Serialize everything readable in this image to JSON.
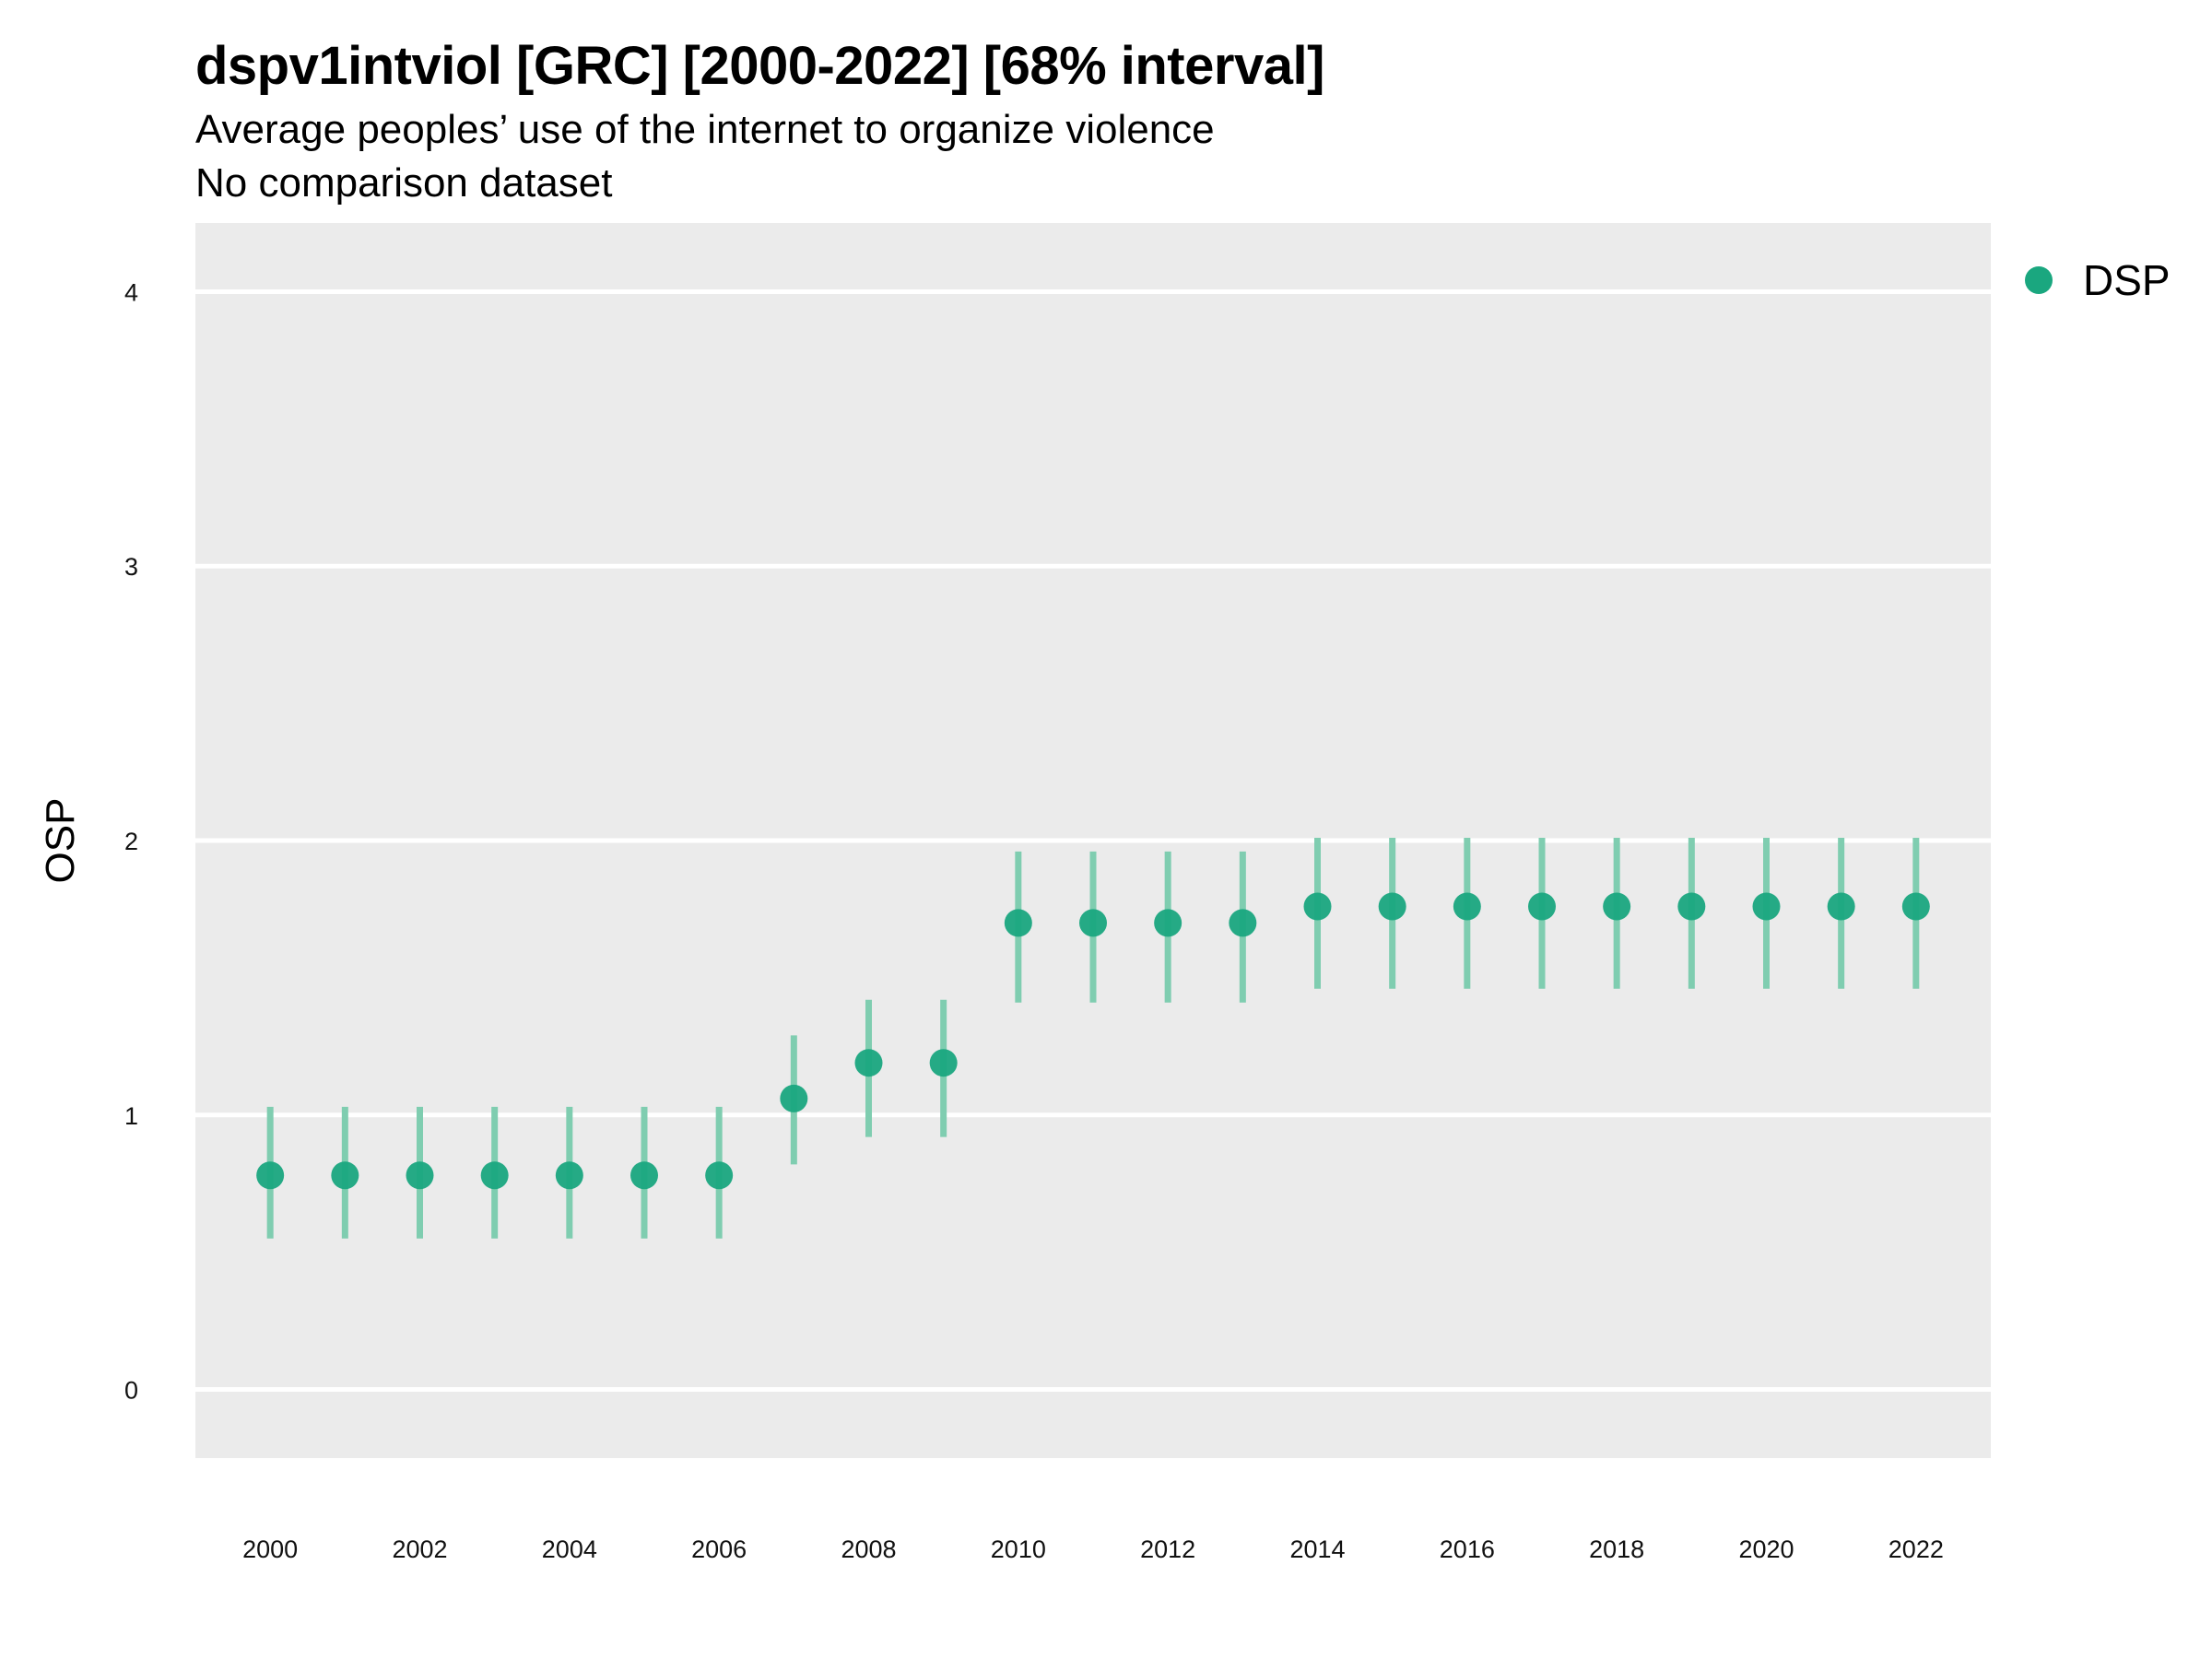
{
  "chart_data": {
    "type": "scatter",
    "title": "dspv1intviol [GRC] [2000-2022] [68% interval]",
    "subtitle": "Average peoples’ use of the internet to organize violence",
    "caption": "No comparison dataset",
    "xlabel": "",
    "ylabel": "OSP",
    "x": [
      2000,
      2001,
      2002,
      2003,
      2004,
      2005,
      2006,
      2007,
      2008,
      2009,
      2010,
      2011,
      2012,
      2013,
      2014,
      2015,
      2016,
      2017,
      2018,
      2019,
      2020,
      2021,
      2022
    ],
    "xticks": [
      "2000",
      "2002",
      "2004",
      "2006",
      "2008",
      "2010",
      "2012",
      "2014",
      "2016",
      "2018",
      "2020",
      "2022"
    ],
    "yticks": [
      "0",
      "1",
      "2",
      "3",
      "4"
    ],
    "xlim": [
      1999,
      2023
    ],
    "ylim": [
      -0.25,
      4.25
    ],
    "grid": true,
    "legend_position": "right",
    "colors": {
      "point": "#1aa77f",
      "interval": "#7fcdb0",
      "panel": "#ebebeb",
      "grid": "#ffffff"
    },
    "series": [
      {
        "name": "DSP",
        "values": [
          0.78,
          0.78,
          0.78,
          0.78,
          0.78,
          0.78,
          0.78,
          1.06,
          1.19,
          1.19,
          1.7,
          1.7,
          1.7,
          1.7,
          1.76,
          1.76,
          1.76,
          1.76,
          1.76,
          1.76,
          1.76,
          1.76,
          1.76
        ],
        "lower": [
          0.55,
          0.55,
          0.55,
          0.55,
          0.55,
          0.55,
          0.55,
          0.82,
          0.92,
          0.92,
          1.41,
          1.41,
          1.41,
          1.41,
          1.46,
          1.46,
          1.46,
          1.46,
          1.46,
          1.46,
          1.46,
          1.46,
          1.46
        ],
        "upper": [
          1.03,
          1.03,
          1.03,
          1.03,
          1.03,
          1.03,
          1.03,
          1.29,
          1.42,
          1.42,
          1.96,
          1.96,
          1.96,
          1.96,
          2.01,
          2.01,
          2.01,
          2.01,
          2.01,
          2.01,
          2.01,
          2.01,
          2.01
        ]
      }
    ]
  }
}
